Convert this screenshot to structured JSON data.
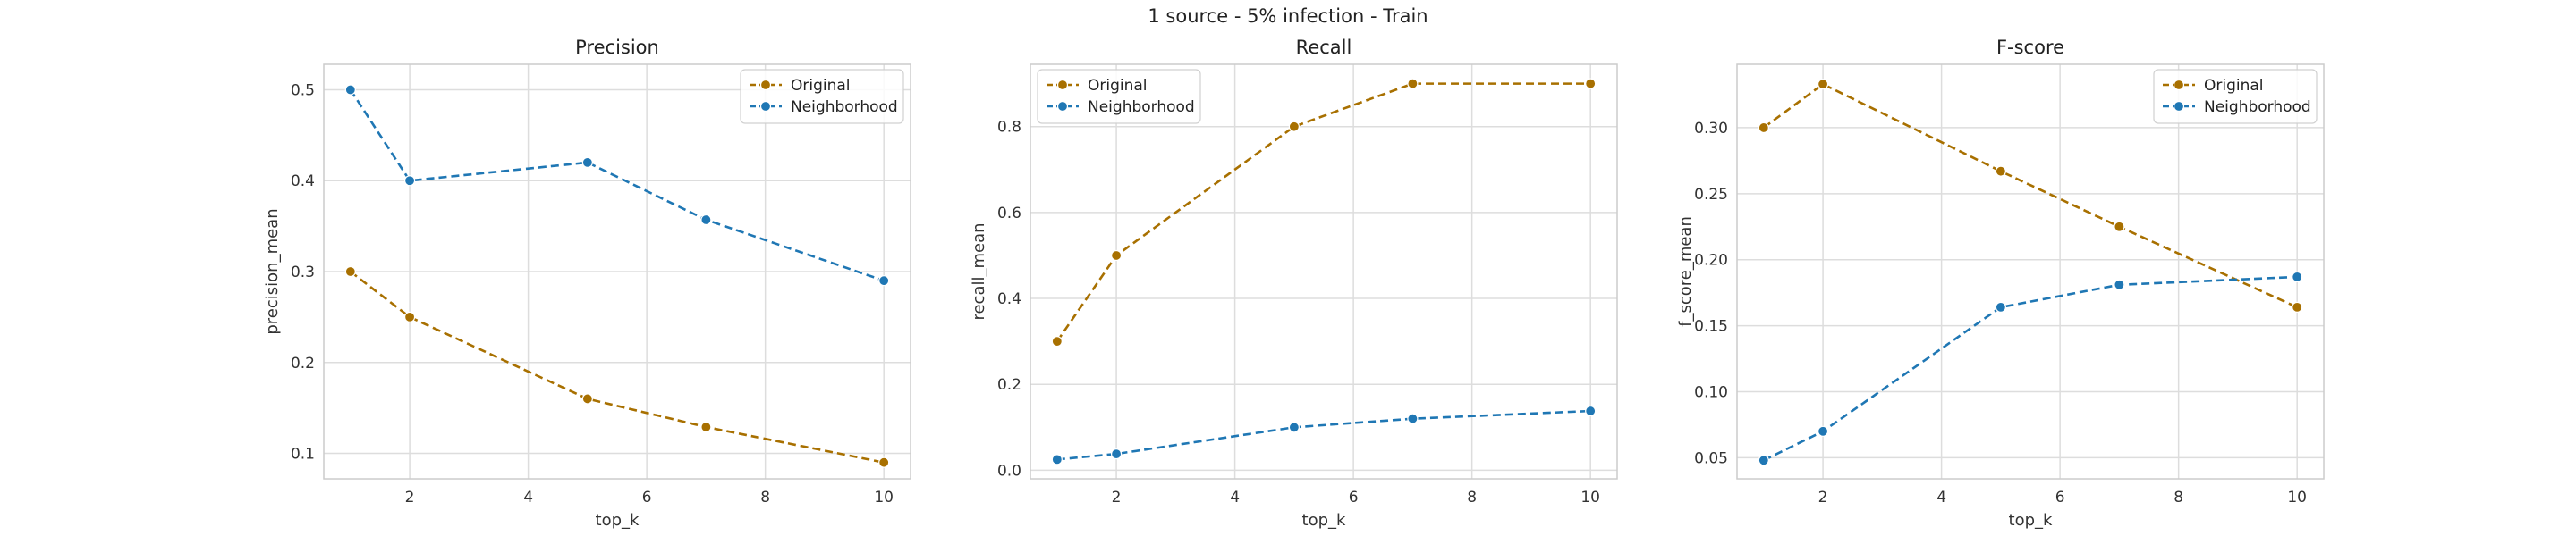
{
  "figure": {
    "suptitle": "1 source - 5% infection - Train"
  },
  "colors": {
    "original": "#a87000",
    "neighborhood": "#1f77b4",
    "grid": "#dddddd",
    "spine": "#cccccc"
  },
  "chart_data": [
    {
      "type": "line",
      "title": "Precision",
      "xlabel": "top_k",
      "ylabel": "precision_mean",
      "x": [
        1,
        2,
        5,
        7,
        10
      ],
      "xlim": [
        0.55,
        10.45
      ],
      "ylim": [
        0.072,
        0.528
      ],
      "xticks": [
        2,
        4,
        6,
        8,
        10
      ],
      "yticks": [
        0.1,
        0.2,
        0.3,
        0.4,
        0.5
      ],
      "ytick_labels": [
        "0.1",
        "0.2",
        "0.3",
        "0.4",
        "0.5"
      ],
      "legend": "top-right",
      "grid": true,
      "series": [
        {
          "name": "Original",
          "values": [
            0.3,
            0.25,
            0.16,
            0.129,
            0.09
          ]
        },
        {
          "name": "Neighborhood",
          "values": [
            0.5,
            0.4,
            0.42,
            0.357,
            0.29
          ]
        }
      ]
    },
    {
      "type": "line",
      "title": "Recall",
      "xlabel": "top_k",
      "ylabel": "recall_mean",
      "x": [
        1,
        2,
        5,
        7,
        10
      ],
      "xlim": [
        0.55,
        10.45
      ],
      "ylim": [
        -0.02,
        0.945
      ],
      "xticks": [
        2,
        4,
        6,
        8,
        10
      ],
      "yticks": [
        0.0,
        0.2,
        0.4,
        0.6,
        0.8
      ],
      "ytick_labels": [
        "0.0",
        "0.2",
        "0.4",
        "0.6",
        "0.8"
      ],
      "legend": "top-left",
      "grid": true,
      "series": [
        {
          "name": "Original",
          "values": [
            0.3,
            0.5,
            0.8,
            0.9,
            0.9
          ]
        },
        {
          "name": "Neighborhood",
          "values": [
            0.025,
            0.038,
            0.1,
            0.12,
            0.138
          ]
        }
      ]
    },
    {
      "type": "line",
      "title": "F-score",
      "xlabel": "top_k",
      "ylabel": "f_score_mean",
      "x": [
        1,
        2,
        5,
        7,
        10
      ],
      "xlim": [
        0.55,
        10.45
      ],
      "ylim": [
        0.034,
        0.348
      ],
      "xticks": [
        2,
        4,
        6,
        8,
        10
      ],
      "yticks": [
        0.05,
        0.1,
        0.15,
        0.2,
        0.25,
        0.3
      ],
      "ytick_labels": [
        "0.05",
        "0.10",
        "0.15",
        "0.20",
        "0.25",
        "0.30"
      ],
      "legend": "top-right",
      "grid": true,
      "series": [
        {
          "name": "Original",
          "values": [
            0.3,
            0.333,
            0.267,
            0.225,
            0.164
          ]
        },
        {
          "name": "Neighborhood",
          "values": [
            0.048,
            0.07,
            0.164,
            0.181,
            0.187
          ]
        }
      ]
    }
  ]
}
